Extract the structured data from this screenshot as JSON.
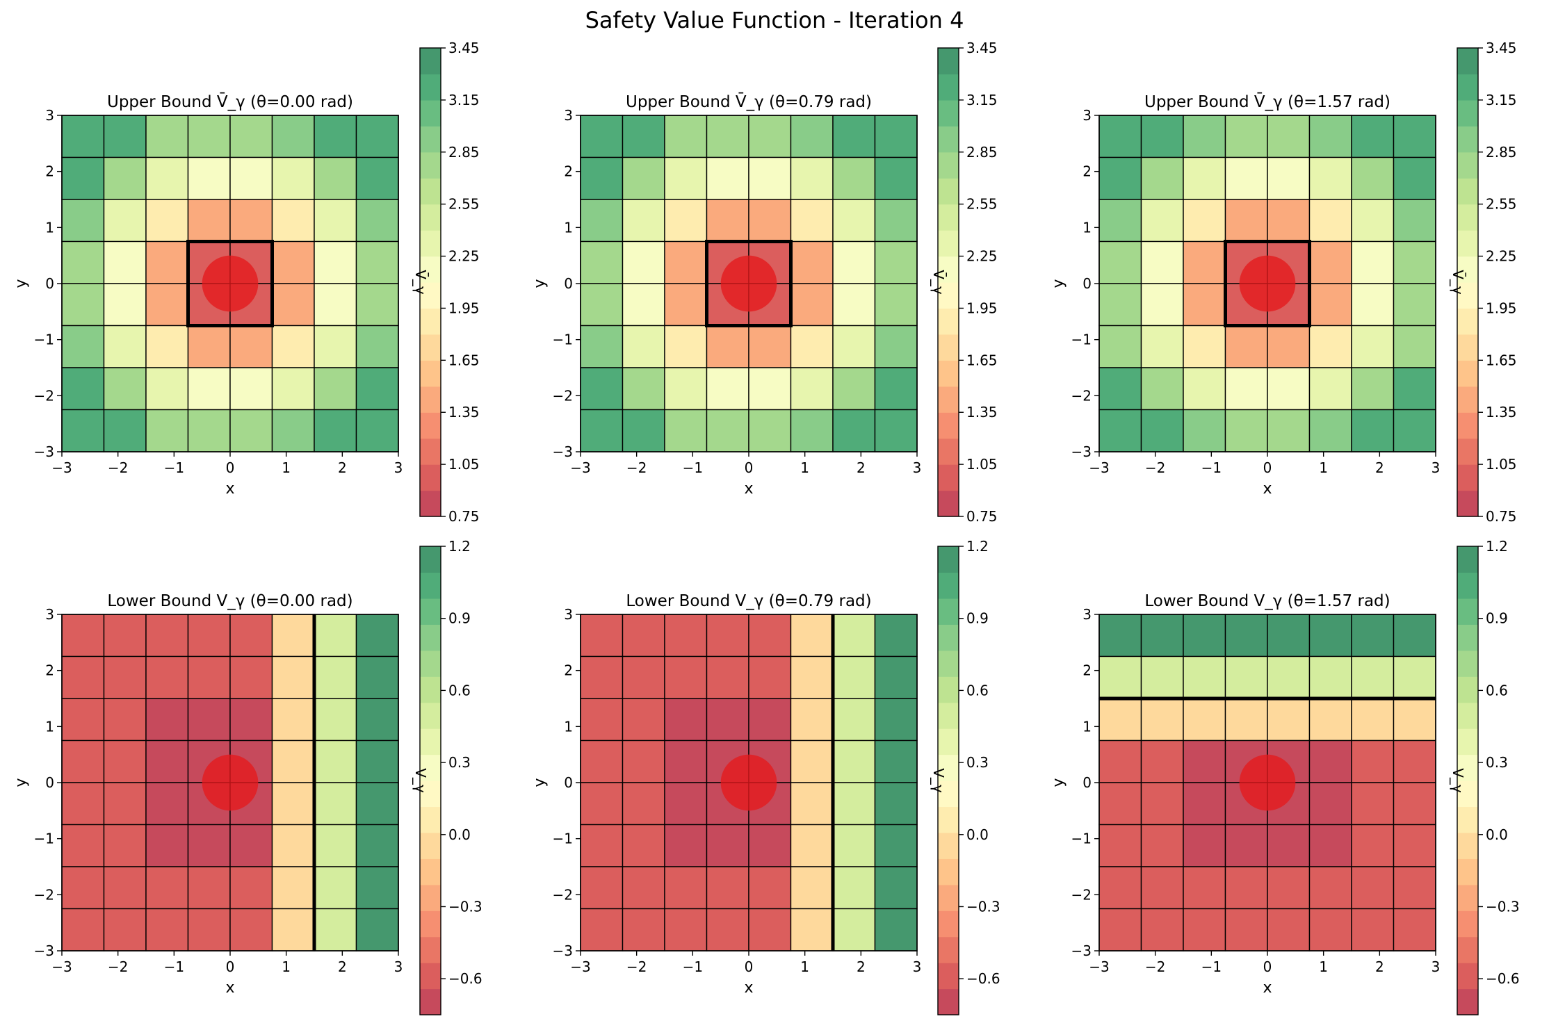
{
  "figure": {
    "title": "Safety Value Function - Iteration 4"
  },
  "colormap": {
    "name": "RdYlGn",
    "stops": [
      "#a50026",
      "#d73027",
      "#f46d43",
      "#fdae61",
      "#fee08b",
      "#ffffbf",
      "#d9ef8b",
      "#a6d96a",
      "#66bd63",
      "#1a9850",
      "#006837"
    ],
    "alpha": 0.75
  },
  "obstacle": {
    "center": [
      0,
      0
    ],
    "radius": 0.5,
    "color": "#e41a1c"
  },
  "chart_data": [
    {
      "type": "heatmap",
      "title": "Upper Bound V̄_γ (θ=0.00 rad)",
      "xlabel": "x",
      "ylabel": "y",
      "xlim": [
        -3,
        3
      ],
      "ylim": [
        -3,
        3
      ],
      "xticks": [
        -3,
        -2,
        -1,
        0,
        1,
        2,
        3
      ],
      "yticks": [
        -3,
        -2,
        -1,
        0,
        1,
        2,
        3
      ],
      "cell_edges": [
        -3,
        -2.25,
        -1.5,
        -0.75,
        0,
        0.75,
        1.5,
        2.25,
        3
      ],
      "values_top_to_bottom": [
        [
          3.3,
          3.2,
          2.8,
          2.7,
          2.8,
          3.0,
          3.3,
          3.3
        ],
        [
          3.3,
          2.8,
          2.4,
          2.1,
          2.1,
          2.4,
          2.8,
          3.3
        ],
        [
          3.0,
          2.4,
          1.8,
          1.4,
          1.4,
          1.8,
          2.4,
          3.0
        ],
        [
          2.8,
          2.1,
          1.4,
          0.9,
          0.9,
          1.4,
          2.1,
          2.8
        ],
        [
          2.8,
          2.1,
          1.4,
          0.9,
          0.9,
          1.4,
          2.1,
          2.8
        ],
        [
          3.0,
          2.4,
          1.8,
          1.4,
          1.4,
          1.8,
          2.4,
          3.0
        ],
        [
          3.3,
          2.8,
          2.4,
          2.1,
          2.1,
          2.4,
          2.8,
          3.3
        ],
        [
          3.3,
          3.3,
          2.8,
          2.7,
          2.8,
          3.0,
          3.3,
          3.3
        ]
      ],
      "zero_contour": {
        "type": "box",
        "x": [
          -0.75,
          0.75
        ],
        "y": [
          -0.75,
          0.75
        ]
      },
      "colorbar": {
        "label": "V̄_γ",
        "range": [
          0.75,
          3.45
        ],
        "ticks": [
          "3.45",
          "3.15",
          "2.85",
          "2.55",
          "2.25",
          "1.95",
          "1.65",
          "1.35",
          "1.05",
          "0.75"
        ]
      }
    },
    {
      "type": "heatmap",
      "title": "Upper Bound V̄_γ (θ=0.79 rad)",
      "xlabel": "x",
      "ylabel": "y",
      "xlim": [
        -3,
        3
      ],
      "ylim": [
        -3,
        3
      ],
      "xticks": [
        -3,
        -2,
        -1,
        0,
        1,
        2,
        3
      ],
      "yticks": [
        -3,
        -2,
        -1,
        0,
        1,
        2,
        3
      ],
      "cell_edges": [
        -3,
        -2.25,
        -1.5,
        -0.75,
        0,
        0.75,
        1.5,
        2.25,
        3
      ],
      "values_top_to_bottom": [
        [
          3.3,
          3.3,
          2.8,
          2.7,
          2.8,
          3.0,
          3.3,
          3.3
        ],
        [
          3.3,
          2.8,
          2.4,
          2.1,
          2.1,
          2.4,
          2.8,
          3.3
        ],
        [
          3.0,
          2.4,
          1.8,
          1.4,
          1.4,
          1.8,
          2.4,
          3.0
        ],
        [
          2.8,
          2.1,
          1.4,
          0.9,
          0.9,
          1.4,
          2.1,
          2.8
        ],
        [
          2.8,
          2.1,
          1.4,
          0.9,
          0.9,
          1.4,
          2.1,
          2.8
        ],
        [
          3.0,
          2.4,
          1.8,
          1.4,
          1.4,
          1.8,
          2.4,
          3.0
        ],
        [
          3.3,
          2.8,
          2.4,
          2.1,
          2.1,
          2.4,
          2.8,
          3.3
        ],
        [
          3.3,
          3.3,
          2.8,
          2.7,
          2.8,
          3.0,
          3.3,
          3.3
        ]
      ],
      "zero_contour": {
        "type": "box",
        "x": [
          -0.75,
          0.75
        ],
        "y": [
          -0.75,
          0.75
        ]
      },
      "colorbar": {
        "label": "V̄_γ",
        "range": [
          0.75,
          3.45
        ],
        "ticks": [
          "3.45",
          "3.15",
          "2.85",
          "2.55",
          "2.25",
          "1.95",
          "1.65",
          "1.35",
          "1.05",
          "0.75"
        ]
      }
    },
    {
      "type": "heatmap",
      "title": "Upper Bound V̄_γ (θ=1.57 rad)",
      "xlabel": "x",
      "ylabel": "y",
      "xlim": [
        -3,
        3
      ],
      "ylim": [
        -3,
        3
      ],
      "xticks": [
        -3,
        -2,
        -1,
        0,
        1,
        2,
        3
      ],
      "yticks": [
        -3,
        -2,
        -1,
        0,
        1,
        2,
        3
      ],
      "cell_edges": [
        -3,
        -2.25,
        -1.5,
        -0.75,
        0,
        0.75,
        1.5,
        2.25,
        3
      ],
      "values_top_to_bottom": [
        [
          3.3,
          3.3,
          3.0,
          2.8,
          2.8,
          3.0,
          3.3,
          3.3
        ],
        [
          3.3,
          2.8,
          2.4,
          2.1,
          2.1,
          2.4,
          2.8,
          3.3
        ],
        [
          3.0,
          2.4,
          1.8,
          1.4,
          1.4,
          1.8,
          2.4,
          3.0
        ],
        [
          2.8,
          2.1,
          1.4,
          0.9,
          0.9,
          1.4,
          2.1,
          2.8
        ],
        [
          2.7,
          2.1,
          1.4,
          0.9,
          0.9,
          1.4,
          2.1,
          2.7
        ],
        [
          2.8,
          2.4,
          1.8,
          1.4,
          1.4,
          1.8,
          2.4,
          2.8
        ],
        [
          3.3,
          2.8,
          2.4,
          2.1,
          2.1,
          2.4,
          2.8,
          3.3
        ],
        [
          3.3,
          3.3,
          3.0,
          2.8,
          2.8,
          3.0,
          3.3,
          3.3
        ]
      ],
      "zero_contour": {
        "type": "box",
        "x": [
          -0.75,
          0.75
        ],
        "y": [
          -0.75,
          0.75
        ]
      },
      "colorbar": {
        "label": "V̄_γ",
        "range": [
          0.75,
          3.45
        ],
        "ticks": [
          "3.45",
          "3.15",
          "2.85",
          "2.55",
          "2.25",
          "1.95",
          "1.65",
          "1.35",
          "1.05",
          "0.75"
        ]
      }
    },
    {
      "type": "heatmap",
      "title": "Lower Bound V_γ (θ=0.00 rad)",
      "xlabel": "x",
      "ylabel": "y",
      "xlim": [
        -3,
        3
      ],
      "ylim": [
        -3,
        3
      ],
      "xticks": [
        -3,
        -2,
        -1,
        0,
        1,
        2,
        3
      ],
      "yticks": [
        -3,
        -2,
        -1,
        0,
        1,
        2,
        3
      ],
      "cell_edges": [
        -3,
        -2.25,
        -1.5,
        -0.75,
        0,
        0.75,
        1.5,
        2.25,
        3
      ],
      "values_top_to_bottom": [
        [
          -0.6,
          -0.6,
          -0.6,
          -0.6,
          -0.6,
          -0.1,
          0.5,
          1.1
        ],
        [
          -0.6,
          -0.6,
          -0.6,
          -0.6,
          -0.6,
          -0.1,
          0.5,
          1.1
        ],
        [
          -0.6,
          -0.6,
          -0.7,
          -0.7,
          -0.7,
          -0.1,
          0.5,
          1.1
        ],
        [
          -0.6,
          -0.6,
          -0.7,
          -0.7,
          -0.7,
          -0.1,
          0.5,
          1.1
        ],
        [
          -0.6,
          -0.6,
          -0.7,
          -0.7,
          -0.7,
          -0.1,
          0.5,
          1.1
        ],
        [
          -0.6,
          -0.6,
          -0.7,
          -0.7,
          -0.7,
          -0.1,
          0.5,
          1.1
        ],
        [
          -0.6,
          -0.6,
          -0.6,
          -0.6,
          -0.6,
          -0.1,
          0.5,
          1.1
        ],
        [
          -0.6,
          -0.6,
          -0.6,
          -0.6,
          -0.6,
          -0.1,
          0.5,
          1.1
        ]
      ],
      "zero_contour": {
        "type": "vline",
        "x": 1.5
      },
      "colorbar": {
        "label": "V_γ",
        "range": [
          -0.75,
          1.2
        ],
        "ticks": [
          "1.2",
          "0.9",
          "0.6",
          "0.3",
          "0.0",
          "−0.3",
          "−0.6"
        ],
        "tick_values": [
          1.2,
          0.9,
          0.6,
          0.3,
          0.0,
          -0.3,
          -0.6
        ]
      }
    },
    {
      "type": "heatmap",
      "title": "Lower Bound V_γ (θ=0.79 rad)",
      "xlabel": "x",
      "ylabel": "y",
      "xlim": [
        -3,
        3
      ],
      "ylim": [
        -3,
        3
      ],
      "xticks": [
        -3,
        -2,
        -1,
        0,
        1,
        2,
        3
      ],
      "yticks": [
        -3,
        -2,
        -1,
        0,
        1,
        2,
        3
      ],
      "cell_edges": [
        -3,
        -2.25,
        -1.5,
        -0.75,
        0,
        0.75,
        1.5,
        2.25,
        3
      ],
      "values_top_to_bottom": [
        [
          -0.6,
          -0.6,
          -0.6,
          -0.6,
          -0.6,
          -0.1,
          0.5,
          1.1
        ],
        [
          -0.6,
          -0.6,
          -0.6,
          -0.6,
          -0.6,
          -0.1,
          0.5,
          1.1
        ],
        [
          -0.6,
          -0.6,
          -0.7,
          -0.7,
          -0.7,
          -0.1,
          0.5,
          1.1
        ],
        [
          -0.6,
          -0.6,
          -0.7,
          -0.7,
          -0.7,
          -0.1,
          0.5,
          1.1
        ],
        [
          -0.6,
          -0.6,
          -0.7,
          -0.7,
          -0.7,
          -0.1,
          0.5,
          1.1
        ],
        [
          -0.6,
          -0.6,
          -0.7,
          -0.7,
          -0.7,
          -0.1,
          0.5,
          1.1
        ],
        [
          -0.6,
          -0.6,
          -0.6,
          -0.6,
          -0.6,
          -0.1,
          0.5,
          1.1
        ],
        [
          -0.6,
          -0.6,
          -0.6,
          -0.6,
          -0.6,
          -0.1,
          0.5,
          1.1
        ]
      ],
      "zero_contour": {
        "type": "vline",
        "x": 1.5
      },
      "colorbar": {
        "label": "V_γ",
        "range": [
          -0.75,
          1.2
        ],
        "ticks": [
          "1.2",
          "0.9",
          "0.6",
          "0.3",
          "0.0",
          "−0.3",
          "−0.6"
        ],
        "tick_values": [
          1.2,
          0.9,
          0.6,
          0.3,
          0.0,
          -0.3,
          -0.6
        ]
      }
    },
    {
      "type": "heatmap",
      "title": "Lower Bound V_γ (θ=1.57 rad)",
      "xlabel": "x",
      "ylabel": "y",
      "xlim": [
        -3,
        3
      ],
      "ylim": [
        -3,
        3
      ],
      "xticks": [
        -3,
        -2,
        -1,
        0,
        1,
        2,
        3
      ],
      "yticks": [
        -3,
        -2,
        -1,
        0,
        1,
        2,
        3
      ],
      "cell_edges": [
        -3,
        -2.25,
        -1.5,
        -0.75,
        0,
        0.75,
        1.5,
        2.25,
        3
      ],
      "values_top_to_bottom": [
        [
          1.1,
          1.1,
          1.1,
          1.1,
          1.1,
          1.1,
          1.1,
          1.1
        ],
        [
          0.5,
          0.5,
          0.5,
          0.5,
          0.5,
          0.5,
          0.5,
          0.5
        ],
        [
          -0.1,
          -0.1,
          -0.1,
          -0.1,
          -0.1,
          -0.1,
          -0.1,
          -0.1
        ],
        [
          -0.6,
          -0.6,
          -0.7,
          -0.7,
          -0.7,
          -0.7,
          -0.6,
          -0.6
        ],
        [
          -0.6,
          -0.6,
          -0.7,
          -0.7,
          -0.7,
          -0.7,
          -0.6,
          -0.6
        ],
        [
          -0.6,
          -0.6,
          -0.7,
          -0.7,
          -0.7,
          -0.7,
          -0.6,
          -0.6
        ],
        [
          -0.6,
          -0.6,
          -0.6,
          -0.6,
          -0.6,
          -0.6,
          -0.6,
          -0.6
        ],
        [
          -0.6,
          -0.6,
          -0.6,
          -0.6,
          -0.6,
          -0.6,
          -0.6,
          -0.6
        ]
      ],
      "zero_contour": {
        "type": "hline",
        "y": 1.5
      },
      "colorbar": {
        "label": "V_γ",
        "range": [
          -0.75,
          1.2
        ],
        "ticks": [
          "1.2",
          "0.9",
          "0.6",
          "0.3",
          "0.0",
          "−0.3",
          "−0.6"
        ],
        "tick_values": [
          1.2,
          0.9,
          0.6,
          0.3,
          0.0,
          -0.3,
          -0.6
        ]
      }
    }
  ]
}
